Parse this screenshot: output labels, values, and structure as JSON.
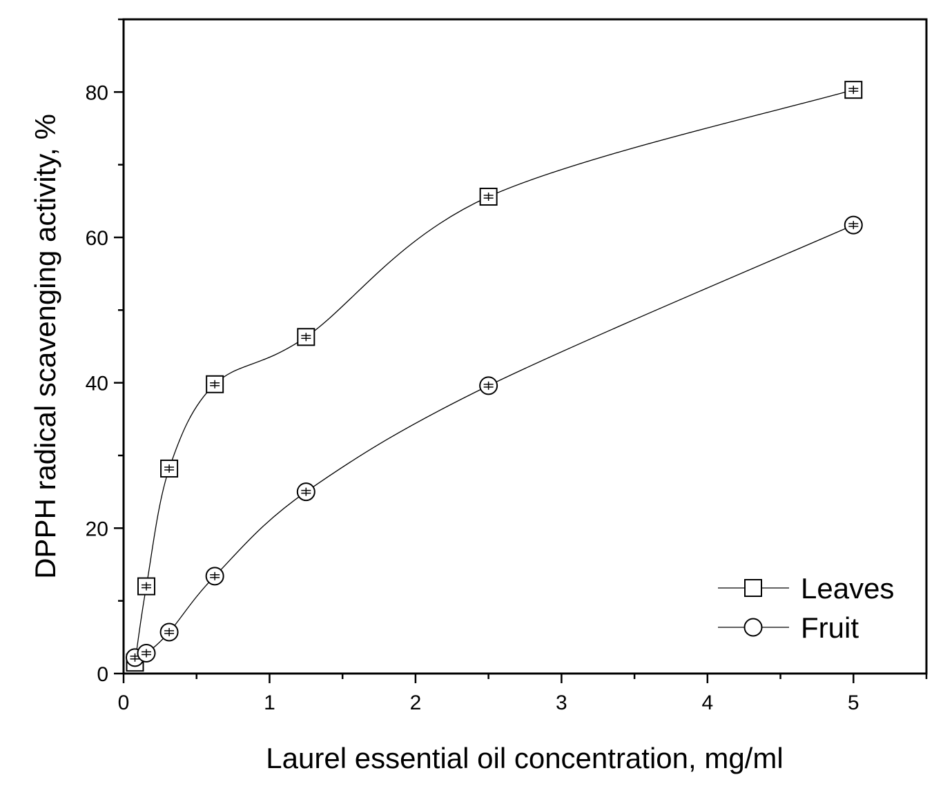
{
  "chart_data": {
    "type": "scatter",
    "title": "",
    "xlabel": "Laurel essential oil concentration, mg/ml",
    "ylabel": "DPPH radical scavenging activity, %",
    "xlim": [
      0,
      5.5
    ],
    "ylim": [
      0,
      90
    ],
    "xticks": [
      0,
      1,
      2,
      3,
      4,
      5
    ],
    "xtick_labels": [
      "0",
      "1",
      "2",
      "3",
      "4",
      "5"
    ],
    "yticks": [
      0,
      20,
      40,
      60,
      80
    ],
    "ytick_labels": [
      "0",
      "20",
      "40",
      "60",
      "80"
    ],
    "grid": false,
    "legend_position": "bottom-right",
    "series": [
      {
        "name": "Leaves",
        "marker": "square",
        "color": "#000000",
        "x": [
          0.078,
          0.156,
          0.3125,
          0.625,
          1.25,
          2.5,
          5.0
        ],
        "y": [
          1.5,
          12.0,
          28.2,
          39.8,
          46.3,
          65.6,
          80.3
        ]
      },
      {
        "name": "Fruit",
        "marker": "circle",
        "color": "#000000",
        "x": [
          0.078,
          0.156,
          0.3125,
          0.625,
          1.25,
          2.5,
          5.0
        ],
        "y": [
          2.2,
          2.8,
          5.7,
          13.4,
          25.0,
          39.6,
          61.7
        ]
      }
    ]
  }
}
